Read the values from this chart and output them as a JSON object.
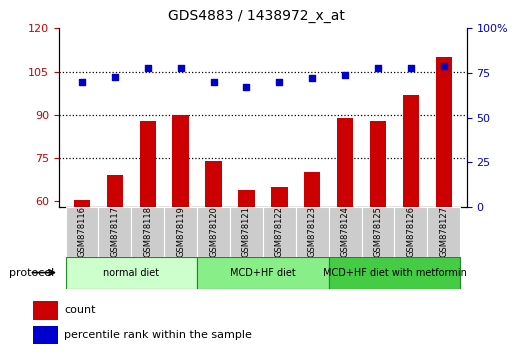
{
  "title": "GDS4883 / 1438972_x_at",
  "samples": [
    "GSM878116",
    "GSM878117",
    "GSM878118",
    "GSM878119",
    "GSM878120",
    "GSM878121",
    "GSM878122",
    "GSM878123",
    "GSM878124",
    "GSM878125",
    "GSM878126",
    "GSM878127"
  ],
  "counts": [
    60.5,
    69,
    88,
    90,
    74,
    64,
    65,
    70,
    89,
    88,
    97,
    110
  ],
  "percentile_ranks": [
    70,
    73,
    78,
    78,
    70,
    67,
    70,
    72,
    74,
    78,
    78,
    79
  ],
  "ylim_left": [
    58,
    120
  ],
  "ylim_right": [
    0,
    100
  ],
  "yticks_left": [
    60,
    75,
    90,
    105,
    120
  ],
  "yticks_right": [
    0,
    25,
    50,
    75,
    100
  ],
  "ytick_labels_right": [
    "0",
    "25",
    "50",
    "75",
    "100%"
  ],
  "bar_color": "#cc0000",
  "dot_color": "#0000cc",
  "hline_y": [
    75,
    90,
    105
  ],
  "groups": [
    {
      "label": "normal diet",
      "start": 0,
      "end": 3,
      "color": "#ccffcc"
    },
    {
      "label": "MCD+HF diet",
      "start": 4,
      "end": 7,
      "color": "#88ee88"
    },
    {
      "label": "MCD+HF diet with metformin",
      "start": 8,
      "end": 11,
      "color": "#44cc44"
    }
  ],
  "legend_count_label": "count",
  "legend_pct_label": "percentile rank within the sample",
  "xlabel_protocol": "protocol",
  "bar_width": 0.5,
  "sample_box_color": "#cccccc",
  "group_border_color": "#228822"
}
